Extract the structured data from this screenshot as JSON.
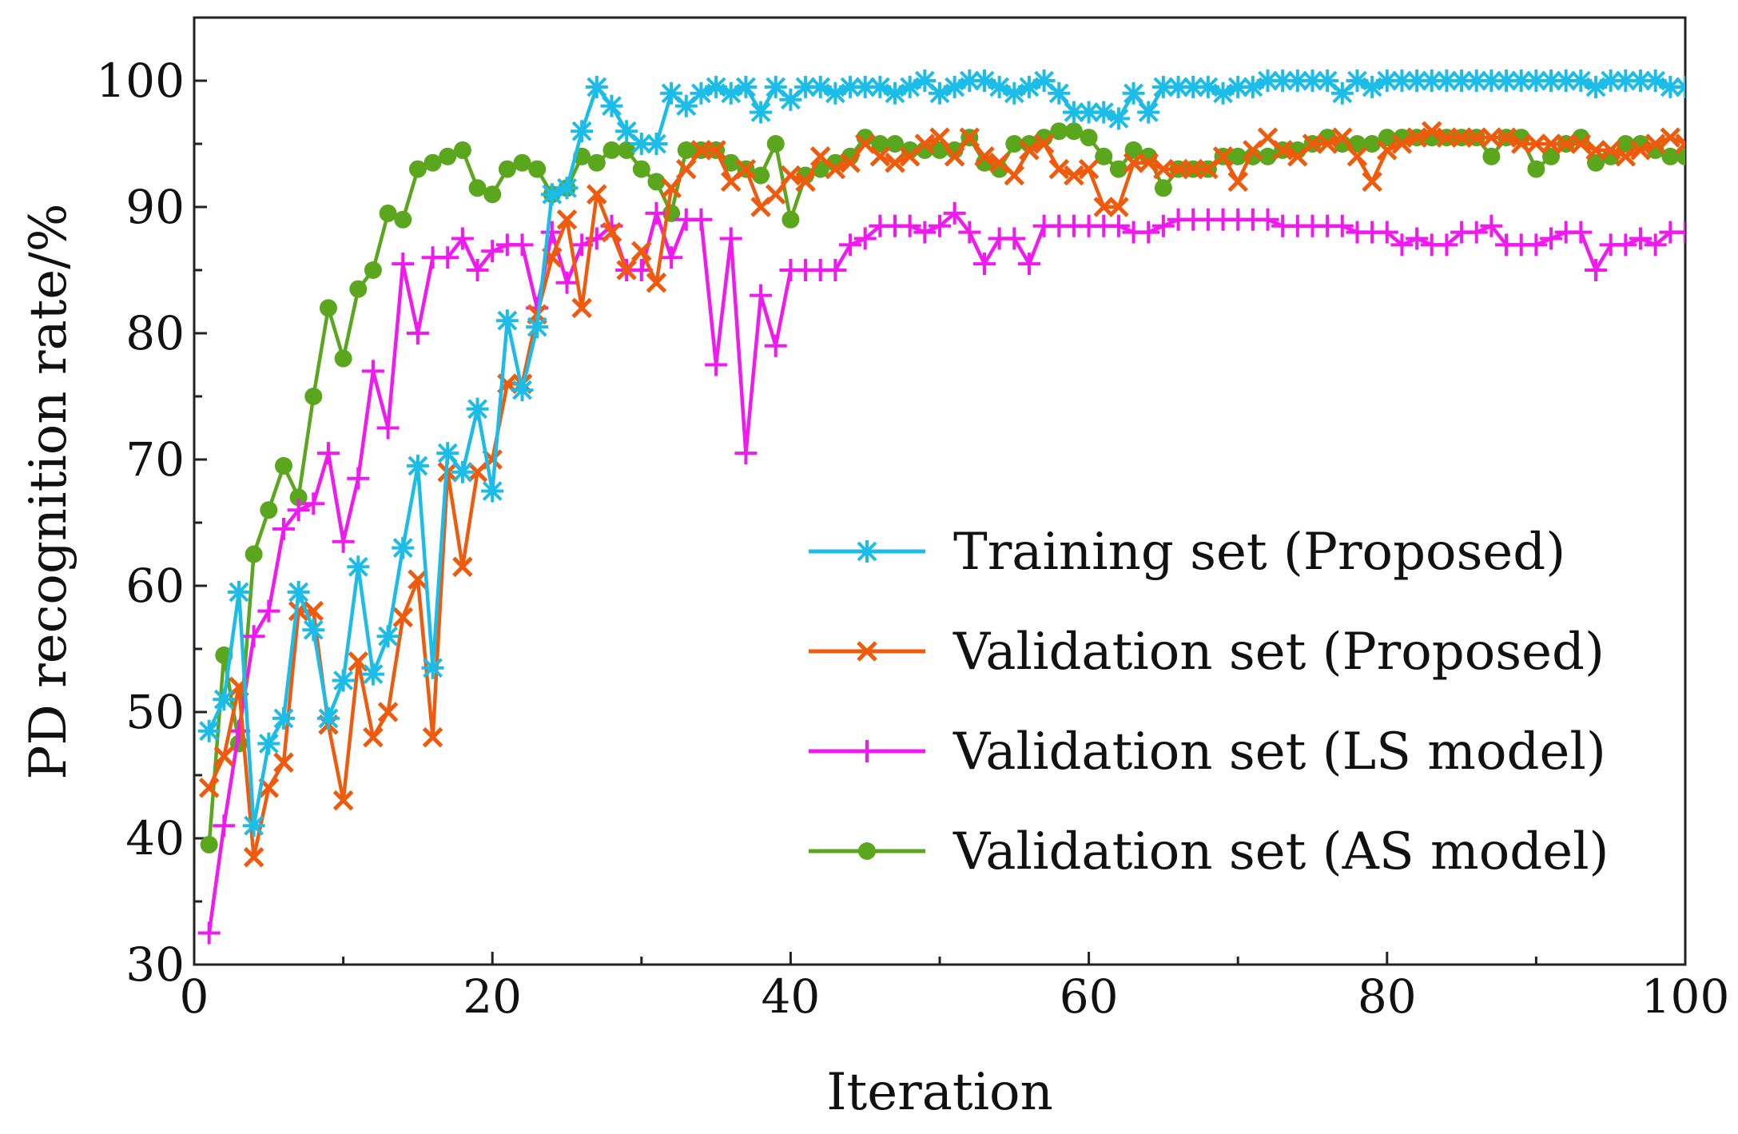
{
  "chart_data": {
    "type": "line",
    "title": "",
    "xlabel": "Iteration",
    "ylabel": "PD recognition rate/%",
    "xlim": [
      0,
      100
    ],
    "ylim": [
      30,
      105
    ],
    "xticks": [
      0,
      20,
      40,
      60,
      80,
      100
    ],
    "yticks": [
      30,
      40,
      50,
      60,
      70,
      80,
      90,
      100
    ],
    "grid": false,
    "legend_position": "lower-right",
    "series": [
      {
        "name": "Training set (Proposed)",
        "color": "#1bbde8",
        "marker": "asterisk",
        "x": [
          1,
          2,
          3,
          4,
          5,
          6,
          7,
          8,
          9,
          10,
          11,
          12,
          13,
          14,
          15,
          16,
          17,
          18,
          19,
          20,
          21,
          22,
          23,
          24,
          25,
          26,
          27,
          28,
          29,
          30,
          31,
          32,
          33,
          34,
          35,
          36,
          37,
          38,
          39,
          40,
          41,
          42,
          43,
          44,
          45,
          46,
          47,
          48,
          49,
          50,
          51,
          52,
          53,
          54,
          55,
          56,
          57,
          58,
          59,
          60,
          61,
          62,
          63,
          64,
          65,
          66,
          67,
          68,
          69,
          70,
          71,
          72,
          73,
          74,
          75,
          76,
          77,
          78,
          79,
          80,
          81,
          82,
          83,
          84,
          85,
          86,
          87,
          88,
          89,
          90,
          91,
          92,
          93,
          94,
          95,
          96,
          97,
          98,
          99,
          100
        ],
        "y": [
          48.5,
          51,
          59.5,
          41,
          47.5,
          49.5,
          59.5,
          56.5,
          49.5,
          52.5,
          61.5,
          53,
          56,
          63,
          69.5,
          53.5,
          70.5,
          69,
          74,
          67.5,
          81,
          75.5,
          80.5,
          91,
          91.5,
          96,
          99.5,
          98,
          96,
          95,
          95,
          99,
          98,
          99,
          99.5,
          99,
          99.5,
          97.5,
          99.5,
          98.5,
          99.5,
          99.5,
          99,
          99.5,
          99.5,
          99.5,
          99,
          99.5,
          100,
          99,
          99.5,
          100,
          100,
          99.5,
          99,
          99.5,
          100,
          99,
          97.5,
          97.5,
          97.5,
          97,
          99,
          97.5,
          99.5,
          99.5,
          99.5,
          99.5,
          99,
          99.5,
          99.5,
          100,
          100,
          100,
          100,
          100,
          99,
          100,
          99.5,
          100,
          100,
          100,
          100,
          100,
          100,
          100,
          100,
          100,
          100,
          100,
          100,
          100,
          100,
          99.5,
          100,
          100,
          100,
          100,
          99.5,
          99.5
        ]
      },
      {
        "name": "Validation set (Proposed)",
        "color": "#f05a0c",
        "marker": "x",
        "x": [
          1,
          2,
          3,
          4,
          5,
          6,
          7,
          8,
          9,
          10,
          11,
          12,
          13,
          14,
          15,
          16,
          17,
          18,
          19,
          20,
          21,
          22,
          23,
          24,
          25,
          26,
          27,
          28,
          29,
          30,
          31,
          32,
          33,
          34,
          35,
          36,
          37,
          38,
          39,
          40,
          41,
          42,
          43,
          44,
          45,
          46,
          47,
          48,
          49,
          50,
          51,
          52,
          53,
          54,
          55,
          56,
          57,
          58,
          59,
          60,
          61,
          62,
          63,
          64,
          65,
          66,
          67,
          68,
          69,
          70,
          71,
          72,
          73,
          74,
          75,
          76,
          77,
          78,
          79,
          80,
          81,
          82,
          83,
          84,
          85,
          86,
          87,
          88,
          89,
          90,
          91,
          92,
          93,
          94,
          95,
          96,
          97,
          98,
          99,
          100
        ],
        "y": [
          44,
          46.5,
          52,
          38.5,
          44,
          46,
          58,
          58,
          49,
          43,
          54,
          48,
          50,
          57.5,
          60.5,
          48,
          69,
          61.5,
          69,
          70,
          76,
          76,
          81.5,
          86,
          89,
          82,
          91,
          88,
          85,
          86.5,
          84,
          91.5,
          93,
          94.5,
          94.5,
          92,
          93,
          90,
          91,
          92.5,
          92,
          94,
          93,
          93.5,
          95,
          94,
          93.5,
          94,
          95,
          95.5,
          94,
          95.5,
          94,
          93.5,
          92.5,
          94.5,
          95,
          93,
          92.5,
          93,
          90,
          90,
          93.5,
          93.5,
          93,
          93,
          93,
          93,
          94,
          92,
          94.5,
          95.5,
          94.5,
          94,
          95,
          95,
          95.5,
          94,
          92,
          94.5,
          95,
          95.5,
          96,
          95.5,
          95.5,
          95.5,
          95.5,
          95.5,
          95,
          95,
          95,
          95,
          95,
          94.5,
          94.5,
          94,
          94.5,
          95,
          95.5,
          95
        ]
      },
      {
        "name": "Validation set (LS model)",
        "color": "#f019f0",
        "marker": "plus",
        "x": [
          1,
          2,
          3,
          4,
          5,
          6,
          7,
          8,
          9,
          10,
          11,
          12,
          13,
          14,
          15,
          16,
          17,
          18,
          19,
          20,
          21,
          22,
          23,
          24,
          25,
          26,
          27,
          28,
          29,
          30,
          31,
          32,
          33,
          34,
          35,
          36,
          37,
          38,
          39,
          40,
          41,
          42,
          43,
          44,
          45,
          46,
          47,
          48,
          49,
          50,
          51,
          52,
          53,
          54,
          55,
          56,
          57,
          58,
          59,
          60,
          61,
          62,
          63,
          64,
          65,
          66,
          67,
          68,
          69,
          70,
          71,
          72,
          73,
          74,
          75,
          76,
          77,
          78,
          79,
          80,
          81,
          82,
          83,
          84,
          85,
          86,
          87,
          88,
          89,
          90,
          91,
          92,
          93,
          94,
          95,
          96,
          97,
          98,
          99,
          100
        ],
        "y": [
          32.5,
          41,
          48.5,
          56,
          58,
          64.5,
          66,
          66.5,
          70.5,
          63.5,
          68.5,
          77,
          72.5,
          85.5,
          80,
          86,
          86,
          87.5,
          85,
          86.5,
          87,
          87,
          82,
          88,
          84,
          87,
          87.5,
          88.5,
          85,
          85,
          89.5,
          86,
          89,
          89,
          77.5,
          87.5,
          70.5,
          83,
          79,
          85,
          85,
          85,
          85,
          87,
          87.5,
          88.5,
          88.5,
          88.5,
          88,
          88.5,
          89.5,
          88,
          85.5,
          87.5,
          87.5,
          85.5,
          88.5,
          88.5,
          88.5,
          88.5,
          88.5,
          88.5,
          88,
          88,
          88.5,
          89,
          89,
          89,
          89,
          89,
          89,
          89,
          88.5,
          88.5,
          88.5,
          88.5,
          88.5,
          88,
          88,
          88,
          87,
          87.5,
          87,
          87,
          88,
          88,
          88.5,
          87,
          87,
          87,
          87.5,
          88,
          88,
          85,
          87,
          87,
          87.5,
          87,
          88,
          88
        ]
      },
      {
        "name": "Validation set (AS model)",
        "color": "#5aa61c",
        "marker": "circle",
        "x": [
          1,
          2,
          3,
          4,
          5,
          6,
          7,
          8,
          9,
          10,
          11,
          12,
          13,
          14,
          15,
          16,
          17,
          18,
          19,
          20,
          21,
          22,
          23,
          24,
          25,
          26,
          27,
          28,
          29,
          30,
          31,
          32,
          33,
          34,
          35,
          36,
          37,
          38,
          39,
          40,
          41,
          42,
          43,
          44,
          45,
          46,
          47,
          48,
          49,
          50,
          51,
          52,
          53,
          54,
          55,
          56,
          57,
          58,
          59,
          60,
          61,
          62,
          63,
          64,
          65,
          66,
          67,
          68,
          69,
          70,
          71,
          72,
          73,
          74,
          75,
          76,
          77,
          78,
          79,
          80,
          81,
          82,
          83,
          84,
          85,
          86,
          87,
          88,
          89,
          90,
          91,
          92,
          93,
          94,
          95,
          96,
          97,
          98,
          99,
          100
        ],
        "y": [
          39.5,
          54.5,
          47.5,
          62.5,
          66,
          69.5,
          67,
          75,
          82,
          78,
          83.5,
          85,
          89.5,
          89,
          93,
          93.5,
          94,
          94.5,
          91.5,
          91,
          93,
          93.5,
          93,
          91,
          91.5,
          94,
          93.5,
          94.5,
          94.5,
          93,
          92,
          89.5,
          94.5,
          94.5,
          94.5,
          93.5,
          93,
          92.5,
          95,
          89,
          92.5,
          93,
          93.5,
          94,
          95.5,
          95,
          95,
          94.5,
          94.5,
          94.5,
          94.5,
          95.5,
          93.5,
          93,
          95,
          95,
          95.5,
          96,
          96,
          95.5,
          94,
          93,
          94.5,
          94,
          91.5,
          93,
          93,
          93,
          94,
          94,
          94,
          94,
          94.5,
          94.5,
          95,
          95.5,
          95,
          95,
          95,
          95.5,
          95.5,
          95.5,
          95.5,
          95.5,
          95.5,
          95.5,
          94,
          95.5,
          95.5,
          93,
          94,
          95,
          95.5,
          93.5,
          94,
          95,
          95,
          94.5,
          94,
          94
        ]
      }
    ]
  }
}
